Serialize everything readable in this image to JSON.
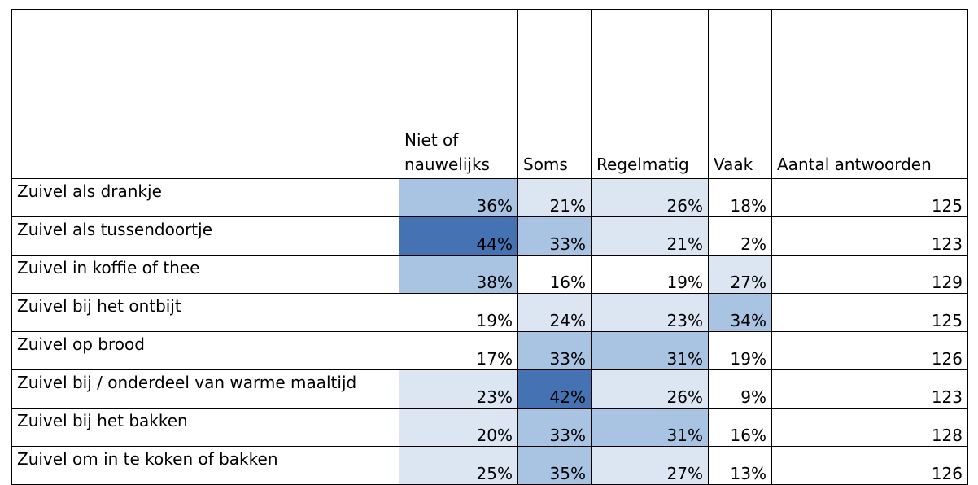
{
  "table": {
    "columns": [
      "Niet of nauwelijks",
      "Soms",
      "Regelmatig",
      "Vaak",
      "Aantal antwoorden"
    ],
    "rows": [
      {
        "label": "Zuivel als drankje",
        "values": [
          "36%",
          "21%",
          "26%",
          "18%"
        ],
        "count": "125",
        "shades": [
          "#a9c4e3",
          "#dce6f2",
          "#dce6f2",
          "#ffffff"
        ]
      },
      {
        "label": "Zuivel als tussendoortje",
        "values": [
          "44%",
          "33%",
          "21%",
          "2%"
        ],
        "count": "123",
        "shades": [
          "#4472b2",
          "#a9c4e3",
          "#dce6f2",
          "#ffffff"
        ]
      },
      {
        "label": "Zuivel in koffie of thee",
        "values": [
          "38%",
          "16%",
          "19%",
          "27%"
        ],
        "count": "129",
        "shades": [
          "#a9c4e3",
          "#ffffff",
          "#ffffff",
          "#dce6f2"
        ]
      },
      {
        "label": "Zuivel bij het ontbijt",
        "values": [
          "19%",
          "24%",
          "23%",
          "34%"
        ],
        "count": "125",
        "shades": [
          "#ffffff",
          "#dce6f2",
          "#dce6f2",
          "#a9c4e3"
        ]
      },
      {
        "label": "Zuivel op brood",
        "values": [
          "17%",
          "33%",
          "31%",
          "19%"
        ],
        "count": "126",
        "shades": [
          "#ffffff",
          "#a9c4e3",
          "#a9c4e3",
          "#ffffff"
        ]
      },
      {
        "label": "Zuivel bij / onderdeel van warme maaltijd",
        "values": [
          "23%",
          "42%",
          "26%",
          "9%"
        ],
        "count": "123",
        "shades": [
          "#dce6f2",
          "#4472b2",
          "#dce6f2",
          "#ffffff"
        ]
      },
      {
        "label": "Zuivel bij het bakken",
        "values": [
          "20%",
          "33%",
          "31%",
          "16%"
        ],
        "count": "128",
        "shades": [
          "#dce6f2",
          "#a9c4e3",
          "#a9c4e3",
          "#ffffff"
        ]
      },
      {
        "label": "Zuivel om in te koken of bakken",
        "values": [
          "25%",
          "35%",
          "27%",
          "13%"
        ],
        "count": "126",
        "shades": [
          "#dce6f2",
          "#a9c4e3",
          "#dce6f2",
          "#ffffff"
        ]
      }
    ]
  }
}
